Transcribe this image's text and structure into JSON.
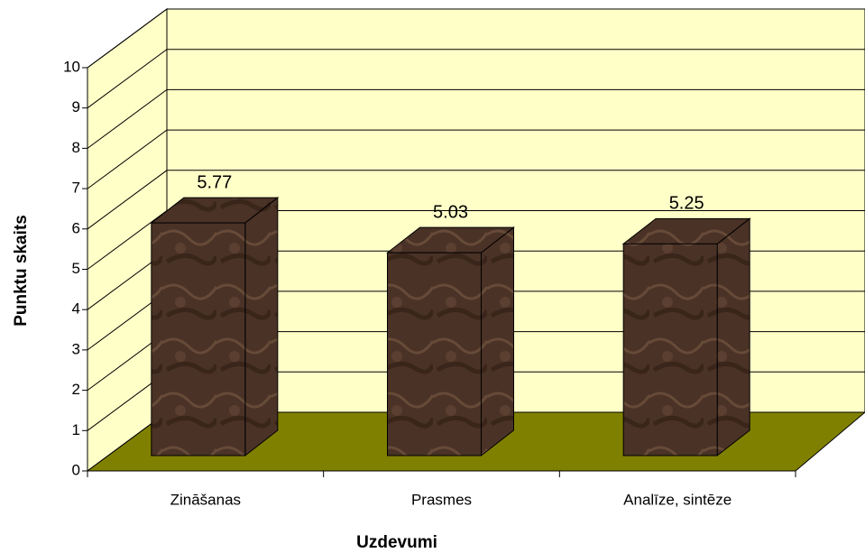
{
  "chart_data": {
    "type": "bar3d",
    "x_label": "Uzdevumi",
    "y_label": "Punktu skaits",
    "categories": [
      "Zināšanas",
      "Prasmes",
      "Analīze, sintēze"
    ],
    "values": [
      5.77,
      5.03,
      5.25
    ],
    "color": "#4a3226",
    "wall_color": "#ffffc8",
    "floor_color": "#808000",
    "ylim": [
      0,
      10
    ],
    "yticks": [
      0,
      1,
      2,
      3,
      4,
      5,
      6,
      7,
      8,
      9,
      10
    ],
    "grid": true
  }
}
